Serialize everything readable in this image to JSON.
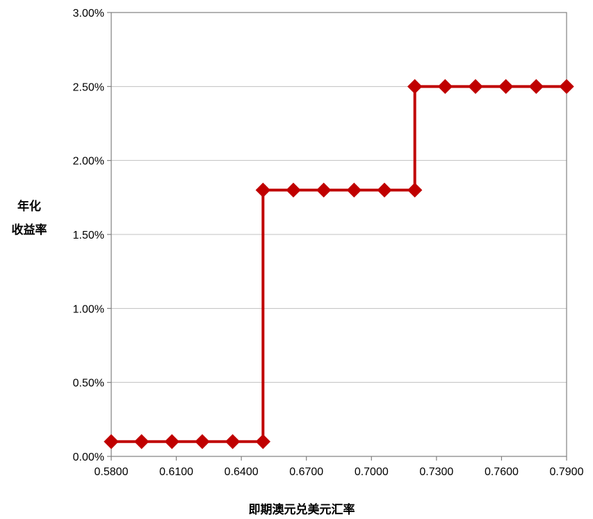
{
  "chart_data": {
    "type": "line",
    "xlabel": "即期澳元兑美元汇率",
    "ylabel_lines": [
      "年化",
      "收益率"
    ],
    "xlim": [
      0.58,
      0.79
    ],
    "ylim": [
      0,
      0.03
    ],
    "x_ticks": [
      0.58,
      0.61,
      0.64,
      0.67,
      0.7,
      0.73,
      0.76,
      0.79
    ],
    "x_tick_labels": [
      "0.5800",
      "0.6100",
      "0.6400",
      "0.6700",
      "0.7000",
      "0.7300",
      "0.7600",
      "0.7900"
    ],
    "y_ticks": [
      0,
      0.005,
      0.01,
      0.015,
      0.02,
      0.025,
      0.03
    ],
    "y_tick_labels": [
      "0.00%",
      "0.50%",
      "1.00%",
      "1.50%",
      "2.00%",
      "2.50%",
      "3.00%"
    ],
    "grid": true,
    "legend": "none",
    "series": [
      {
        "color": "#C00000",
        "marker": "diamond",
        "points": [
          [
            0.58,
            0.001
          ],
          [
            0.594,
            0.001
          ],
          [
            0.608,
            0.001
          ],
          [
            0.622,
            0.001
          ],
          [
            0.636,
            0.001
          ],
          [
            0.65,
            0.001
          ],
          [
            0.65,
            0.018
          ],
          [
            0.664,
            0.018
          ],
          [
            0.678,
            0.018
          ],
          [
            0.692,
            0.018
          ],
          [
            0.706,
            0.018
          ],
          [
            0.72,
            0.018
          ],
          [
            0.72,
            0.025
          ],
          [
            0.734,
            0.025
          ],
          [
            0.748,
            0.025
          ],
          [
            0.762,
            0.025
          ],
          [
            0.776,
            0.025
          ],
          [
            0.79,
            0.025
          ]
        ]
      }
    ]
  }
}
